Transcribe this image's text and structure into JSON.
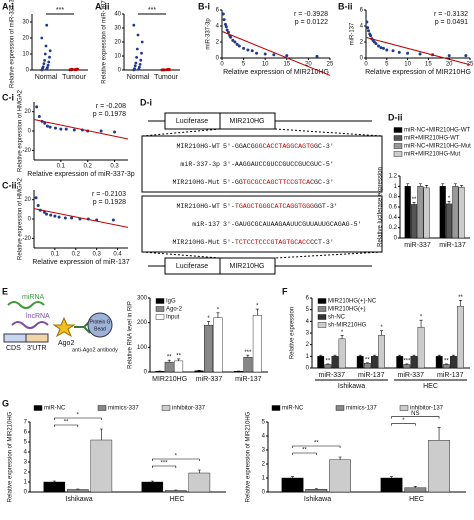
{
  "chart_data": [
    {
      "type": "dot",
      "panel": "A-i",
      "ylabel": "Relative expression of miR-337-3p",
      "categories": [
        "Normal",
        "Tumour"
      ],
      "values": [
        [
          0,
          0.5,
          1,
          1.5,
          2,
          3,
          4,
          5,
          6,
          8,
          10,
          12,
          15,
          20,
          28
        ],
        [
          0.1,
          0.2,
          0.3,
          0.2,
          0.1,
          0.4,
          0.5,
          0.2,
          0.3,
          0.6
        ]
      ],
      "colors": [
        "#1f3a93",
        "#c00000"
      ],
      "sig": "***",
      "ylim": [
        0,
        35
      ],
      "yticks": [
        0,
        10,
        20,
        30
      ]
    },
    {
      "type": "dot",
      "panel": "A-ii",
      "ylabel": "Relative expression of miR-137",
      "categories": [
        "Normal",
        "Tumour"
      ],
      "values": [
        [
          0,
          0.5,
          1,
          2,
          3,
          4,
          5,
          7,
          9,
          12,
          15,
          20,
          25,
          32
        ],
        [
          0.1,
          0.2,
          0.1,
          0.3,
          0.2,
          0.4,
          0.2,
          0.5,
          0.1,
          0.3
        ]
      ],
      "colors": [
        "#1f3a93",
        "#c00000"
      ],
      "sig": "***",
      "ylim": [
        0,
        40
      ],
      "yticks": [
        0,
        10,
        20,
        30,
        40
      ]
    },
    {
      "type": "scatter",
      "panel": "B-i",
      "ylabel": "miR-337-3p",
      "xlabel": "Relative expression of MIR210HG",
      "stats": [
        "r = -0.3928",
        "p = 0.0122"
      ],
      "color": "#1f3a93",
      "line_color": "#c00000",
      "x": [
        0.3,
        0.5,
        0.8,
        1,
        1.2,
        1.5,
        1.8,
        2,
        2.5,
        3,
        3.5,
        4,
        5,
        6,
        7,
        8,
        10,
        12,
        15,
        22
      ],
      "y": [
        5.5,
        4.8,
        4.2,
        3.9,
        3.5,
        3.2,
        2.8,
        2.6,
        2.2,
        2,
        1.7,
        1.5,
        1.2,
        1,
        0.9,
        0.6,
        0.5,
        0.4,
        0.3,
        0.2
      ],
      "xlim": [
        0,
        25
      ],
      "xticks": [
        0,
        5,
        10,
        15,
        20,
        25
      ],
      "ylim": [
        0,
        6
      ],
      "yticks": [
        0,
        2,
        4,
        6
      ]
    },
    {
      "type": "scatter",
      "panel": "B-ii",
      "ylabel": "miR-137",
      "xlabel": "Relative expression of MIR210HG",
      "stats": [
        "r = -0.3132",
        "p = 0.0491"
      ],
      "color": "#1f3a93",
      "line_color": "#c00000",
      "x": [
        0.2,
        0.4,
        0.6,
        0.9,
        1.1,
        1.4,
        1.7,
        2,
        2.4,
        3,
        3.6,
        4.2,
        5,
        6.5,
        8,
        10,
        13,
        16,
        20,
        24
      ],
      "y": [
        4.5,
        3.8,
        3.4,
        3,
        2.8,
        2.4,
        2.2,
        2,
        1.8,
        1.5,
        1.3,
        1.2,
        1,
        0.9,
        0.7,
        0.6,
        0.5,
        0.4,
        0.3,
        0.3
      ],
      "xlim": [
        0,
        25
      ],
      "xticks": [
        0,
        5,
        10,
        15,
        20,
        25
      ],
      "ylim": [
        0,
        6
      ],
      "yticks": [
        0,
        2,
        4,
        6
      ]
    },
    {
      "type": "scatter",
      "panel": "C-i",
      "ylabel": "Relative expression of HMGA2",
      "xlabel": "Relative expression of miR-337-3p",
      "stats": [
        "r = -0.208",
        "p = 0.1978"
      ],
      "color": "#1f3a93",
      "line_color": "#c00000",
      "x": [
        0.01,
        0.02,
        0.03,
        0.04,
        0.05,
        0.06,
        0.08,
        0.1,
        0.12,
        0.15,
        0.18,
        0.2,
        0.25,
        0.3
      ],
      "y": [
        25,
        15,
        10,
        8,
        5,
        4,
        3,
        2,
        2,
        1,
        1,
        0,
        0,
        -1
      ],
      "xlim": [
        0,
        0.35
      ],
      "xticks": [
        0.1,
        0.2,
        0.3
      ],
      "ylim": [
        -30,
        30
      ],
      "yticks": [
        -20,
        0,
        20
      ]
    },
    {
      "type": "scatter",
      "panel": "C-ii",
      "ylabel": "Relative expression of HMGA2",
      "xlabel": "Relative expression of miR-137",
      "stats": [
        "r = -0.2103",
        "p = 0.1928"
      ],
      "color": "#1f3a93",
      "line_color": "#c00000",
      "x": [
        0.01,
        0.02,
        0.03,
        0.05,
        0.06,
        0.08,
        0.1,
        0.12,
        0.15,
        0.18,
        0.22,
        0.26,
        0.3,
        0.38
      ],
      "y": [
        22,
        14,
        9,
        7,
        5,
        4,
        3,
        2,
        1,
        1,
        0,
        0,
        -1,
        -1
      ],
      "xlim": [
        0,
        0.45
      ],
      "xticks": [
        0.1,
        0.2,
        0.3,
        0.4
      ],
      "ylim": [
        -30,
        30
      ],
      "yticks": [
        -20,
        0,
        20
      ]
    },
    {
      "type": "bar",
      "panel": "D-ii",
      "ylabel": "Relative luciferase expression",
      "legend": "above",
      "categories": [
        "miR-337",
        "miR-137"
      ],
      "series": [
        {
          "name": "miR-NC+MIR210HG-WT",
          "color": "#000000",
          "values": [
            1,
            1
          ],
          "errors": [
            0.05,
            0.05
          ],
          "sig": [
            null,
            null
          ]
        },
        {
          "name": "miR+MIR210HG-WT",
          "color": "#555555",
          "values": [
            0.65,
            0.66
          ],
          "errors": [
            0.04,
            0.05
          ],
          "sig": [
            "**",
            "*"
          ]
        },
        {
          "name": "miR-NC+MIR210HG-Mut",
          "color": "#999999",
          "values": [
            1,
            1
          ],
          "errors": [
            0.05,
            0.05
          ],
          "sig": [
            null,
            null
          ]
        },
        {
          "name": "miR+MIR210HG-Mut",
          "color": "#cccccc",
          "values": [
            0.97,
            0.98
          ],
          "errors": [
            0.05,
            0.04
          ],
          "sig": [
            null,
            null
          ]
        }
      ],
      "ylim": [
        0,
        1.2
      ],
      "yticks": [
        0,
        0.2,
        0.4,
        0.6,
        0.8,
        1,
        1.2
      ]
    },
    {
      "type": "bar",
      "panel": "E",
      "ylabel": "Relative RNA level in RIP",
      "legend": "upper left",
      "categories": [
        "MIR210HG",
        "miR-337",
        "miR-137"
      ],
      "series": [
        {
          "name": "IgG",
          "color": "#000000",
          "values": [
            3,
            5,
            3
          ],
          "errors": [
            1,
            2,
            1
          ],
          "sig": [
            null,
            null,
            null
          ]
        },
        {
          "name": "Ago-2",
          "color": "#888888",
          "values": [
            40,
            190,
            60
          ],
          "errors": [
            8,
            15,
            8
          ],
          "sig": [
            "**",
            "*",
            "***"
          ]
        },
        {
          "name": "Input",
          "color": "#ffffff",
          "values": [
            45,
            220,
            230
          ],
          "errors": [
            8,
            20,
            25
          ],
          "sig": [
            "**",
            "*",
            "*"
          ]
        }
      ],
      "ylim": [
        0,
        300
      ],
      "yticks": [
        0,
        100,
        200,
        300
      ]
    },
    {
      "type": "bar",
      "panel": "F",
      "ylabel": "Relative expression",
      "legend": "upper left",
      "categories": [
        "miR-337",
        "miR-137",
        "miR-337",
        "miR-137"
      ],
      "groups": [
        "Ishikawa",
        "HEC"
      ],
      "series": [
        {
          "name": "MIR210HG(+)-NC",
          "color": "#000000",
          "values": [
            1,
            1,
            1,
            1
          ],
          "errors": [
            0.1,
            0.1,
            0.1,
            0.1
          ],
          "sig": [
            null,
            null,
            null,
            null
          ]
        },
        {
          "name": "MIR210HG(+)",
          "color": "#888888",
          "values": [
            0.3,
            0.4,
            0.3,
            0.3
          ],
          "errors": [
            0.05,
            0.05,
            0.05,
            0.05
          ],
          "sig": [
            "**",
            "**",
            "***",
            "**"
          ]
        },
        {
          "name": "sh-NC",
          "color": "#333333",
          "values": [
            1,
            1,
            1,
            1
          ],
          "errors": [
            0.1,
            0.1,
            0.1,
            0.1
          ],
          "sig": [
            null,
            null,
            null,
            null
          ]
        },
        {
          "name": "sh-MIR210HG",
          "color": "#cccccc",
          "values": [
            2.5,
            2.8,
            3.5,
            5.3
          ],
          "errors": [
            0.3,
            0.4,
            0.6,
            0.5
          ],
          "sig": [
            "*",
            "*",
            "*",
            "**"
          ]
        }
      ],
      "ylim": [
        0,
        6
      ],
      "yticks": [
        0,
        1,
        2,
        3,
        4,
        5,
        6
      ]
    },
    {
      "type": "bar",
      "panel": "G",
      "ylabel": "Relative expression of MIR210HG",
      "legend": "above",
      "categories": [
        "Ishikawa",
        "HEC"
      ],
      "series": [
        {
          "name": "miR-NC",
          "color": "#000000",
          "values": [
            1,
            1
          ],
          "errors": [
            0.1,
            0.1
          ]
        },
        {
          "name": "mimics-337",
          "color": "#888888",
          "values": [
            0.25,
            0.15
          ],
          "errors": [
            0.05,
            0.05
          ],
          "bracket": [
            "**",
            "***"
          ]
        },
        {
          "name": "inhibitor-337",
          "color": "#cccccc",
          "values": [
            5.2,
            1.9
          ],
          "errors": [
            1.1,
            0.3
          ],
          "bracket": [
            "*",
            "*"
          ]
        }
      ],
      "ylim": [
        0,
        7
      ],
      "yticks": [
        0,
        1,
        2,
        3,
        4,
        5,
        6,
        7
      ]
    },
    {
      "type": "bar",
      "ylabel": "Relative expression of MIR210HG",
      "legend": "above",
      "categories": [
        "Ishikawa",
        "HEC"
      ],
      "series": [
        {
          "name": "miR-NC",
          "color": "#000000",
          "values": [
            1,
            1
          ],
          "errors": [
            0.1,
            0.1
          ]
        },
        {
          "name": "mimics-137",
          "color": "#888888",
          "values": [
            0.2,
            0.3
          ],
          "errors": [
            0.05,
            0.1
          ],
          "bracket": [
            "**",
            "*"
          ]
        },
        {
          "name": "inhibitor-137",
          "color": "#cccccc",
          "values": [
            2.3,
            3.7
          ],
          "errors": [
            0.2,
            0.9
          ],
          "bracket": [
            "**",
            "NS"
          ]
        }
      ],
      "ylim": [
        0,
        5
      ],
      "yticks": [
        0,
        1,
        2,
        3,
        4,
        5
      ]
    }
  ],
  "diagram_d": {
    "panel": "D-i",
    "top": [
      "Luciferase",
      "MIR210HG"
    ],
    "bottom": [
      "Luciferase",
      "MIR210HG"
    ],
    "blocks": [
      {
        "rows": [
          {
            "label": "MIR210HG-WT",
            "seq": [
              "5'-GGACG",
              "GGCACCTAGGCAGTG",
              "GC-3'"
            ]
          },
          {
            "label": "miR-337-3p",
            "seq": [
              "3'-AAGGAUCCGUCCGUCCGUCGUC-5'"
            ]
          },
          {
            "label": "MIR210HG-Mut",
            "seq": [
              "5'-GG",
              "TGCGCCAGCTTCCGTCA",
              "CGC-3'"
            ]
          }
        ]
      },
      {
        "rows": [
          {
            "label": "MIR210HG-WT",
            "seq": [
              "5'-",
              "TGAGCTGGGCATCAGGTGGG",
              "GGT-3'"
            ]
          },
          {
            "label": "miR-137",
            "seq": [
              "3'-GAUGCGCAUAAGAAUUCGUUAUUGCAGAG-5'"
            ]
          },
          {
            "label": "MIR210HG-Mut",
            "seq": [
              "5'-",
              "TCTCCTCCCGTAGTGCACC",
              "CCT-3'"
            ]
          }
        ]
      }
    ]
  },
  "diagram_e": {
    "mirna": "miRNA",
    "lncrna": "lncRNA",
    "cds": "CDS",
    "utr": "3'UTR",
    "ago": "Ago2",
    "antibody": "anti-Ago2 antibody",
    "bead": [
      "Protein G",
      "Bead"
    ]
  }
}
